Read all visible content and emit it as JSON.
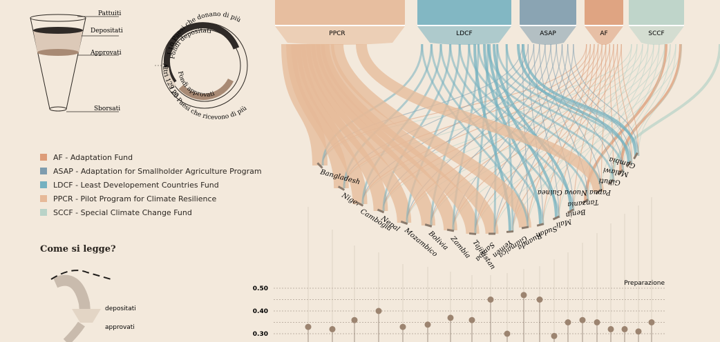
{
  "funnel_key": {
    "labels": [
      "Pattuiti",
      "Depositati",
      "Approvati",
      "Sborsati"
    ]
  },
  "donut_key": {
    "inner_top": "Fondi depositati",
    "inner_bottom": "Fondi approvati",
    "outer_top": "I 10 Paesi che donano di più",
    "outer_bottom": "I 20 Paesi che ricevono di più",
    "outer_left": "Altri 129 paesi"
  },
  "legend": [
    {
      "code": "AF",
      "label": "AF - Adaptation Fund",
      "color": "#dd9c78"
    },
    {
      "code": "ASAP",
      "label": "ASAP - Adaptation for Smallholder Agriculture Program",
      "color": "#7e9cae"
    },
    {
      "code": "LDCF",
      "label": "LDCF - Least Developement Countries Fund",
      "color": "#75b1c0"
    },
    {
      "code": "PPCR",
      "label": "PPCR - Pilot Program for Climate Resilience",
      "color": "#e6b998"
    },
    {
      "code": "SCCF",
      "label": "SCCF - Special Climate Change Fund",
      "color": "#b9d3c8"
    }
  ],
  "howto": {
    "title": "Come si legge?",
    "label_deposited": "depositati",
    "label_approved": "approvati"
  },
  "chart_data": {
    "type": "scatter",
    "title": "",
    "funds": [
      {
        "name": "PPCR",
        "color": "#e6b998"
      },
      {
        "name": "LDCF",
        "color": "#75b1c0"
      },
      {
        "name": "ASAP",
        "color": "#7e9cae"
      },
      {
        "name": "AF",
        "color": "#dd9c78"
      },
      {
        "name": "SCCF",
        "color": "#b9d3c8"
      }
    ],
    "categories": [
      "Bangladesh",
      "Niger",
      "Cambogia",
      "Nepal",
      "Mozambico",
      "Bolivia",
      "Zambia",
      "Tajikistan",
      "Samoa",
      "Yemen",
      "Giamaica",
      "Ruanda",
      "Sudan",
      "Mali",
      "Benin",
      "Tanzania",
      "Papua Nuova Guinea",
      "Gibuti",
      "Malawi",
      "Gambia"
    ],
    "series": [
      {
        "name": "Preparazione",
        "values": [
          0.33,
          0.32,
          0.36,
          0.4,
          0.33,
          0.34,
          0.37,
          0.36,
          0.45,
          0.3,
          0.47,
          0.45,
          0.29,
          0.35,
          0.36,
          0.35,
          0.32,
          0.32,
          0.31,
          0.35
        ]
      }
    ],
    "ylabel": "Preparazione",
    "yticks": [
      "0.50",
      "0.40",
      "0.30"
    ],
    "ylim": [
      0.25,
      0.52
    ],
    "grid": true
  }
}
